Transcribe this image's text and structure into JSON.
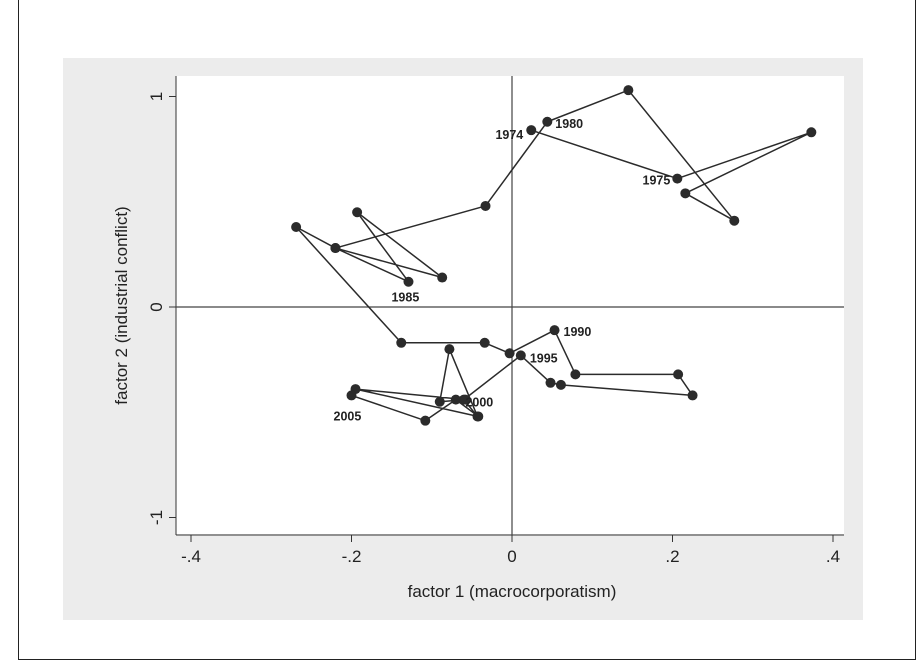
{
  "chart_data": {
    "type": "scatter",
    "title": "",
    "xlabel": "factor 1 (macrocorporatism)",
    "ylabel": "factor 2 (industrial conflict)",
    "xlim": [
      -0.4,
      0.4
    ],
    "ylim": [
      -1,
      1
    ],
    "xticks": [
      -0.4,
      -0.2,
      0,
      0.2,
      0.4
    ],
    "xtick_labels": [
      "-.4",
      "-.2",
      "0",
      ".2",
      ".4"
    ],
    "yticks": [
      -1,
      0,
      1
    ],
    "ytick_labels": [
      "-1",
      "0",
      "1"
    ],
    "grid": false,
    "reference_lines": {
      "x": 0,
      "y": 0
    },
    "colors": {
      "background": "#ececec",
      "plot_area": "#ffffff",
      "marker": "#2b2b2b",
      "line": "#2b2b2b"
    },
    "series": [
      {
        "connected": true,
        "points": [
          {
            "x": 0.024,
            "y": 0.84,
            "label": "1974"
          },
          {
            "x": 0.206,
            "y": 0.61,
            "label": "1975"
          },
          {
            "x": 0.373,
            "y": 0.83
          },
          {
            "x": 0.216,
            "y": 0.54
          },
          {
            "x": 0.277,
            "y": 0.41
          },
          {
            "x": 0.145,
            "y": 1.03
          },
          {
            "x": 0.044,
            "y": 0.88,
            "label": "1980"
          },
          {
            "x": -0.033,
            "y": 0.48
          },
          {
            "x": -0.22,
            "y": 0.28
          },
          {
            "x": -0.087,
            "y": 0.14
          },
          {
            "x": -0.193,
            "y": 0.45
          },
          {
            "x": -0.129,
            "y": 0.12,
            "label": "1985"
          },
          {
            "x": -0.22,
            "y": 0.28
          },
          {
            "x": -0.269,
            "y": 0.38
          },
          {
            "x": -0.138,
            "y": -0.17
          },
          {
            "x": -0.034,
            "y": -0.17
          },
          {
            "x": -0.003,
            "y": -0.22
          },
          {
            "x": 0.053,
            "y": -0.11,
            "label": "1990"
          },
          {
            "x": 0.079,
            "y": -0.32
          },
          {
            "x": 0.207,
            "y": -0.32
          },
          {
            "x": 0.225,
            "y": -0.42
          },
          {
            "x": 0.061,
            "y": -0.37
          },
          {
            "x": 0.048,
            "y": -0.36
          },
          {
            "x": 0.011,
            "y": -0.23,
            "label": "1995"
          },
          {
            "x": -0.06,
            "y": -0.44
          },
          {
            "x": -0.043,
            "y": -0.52
          },
          {
            "x": -0.078,
            "y": -0.2
          },
          {
            "x": -0.09,
            "y": -0.45
          },
          {
            "x": -0.058,
            "y": -0.44,
            "label": "2000"
          },
          {
            "x": -0.195,
            "y": -0.39
          },
          {
            "x": -0.042,
            "y": -0.52
          },
          {
            "x": -0.07,
            "y": -0.44
          },
          {
            "x": -0.108,
            "y": -0.54
          },
          {
            "x": -0.2,
            "y": -0.42,
            "label": "2005"
          }
        ]
      }
    ]
  }
}
